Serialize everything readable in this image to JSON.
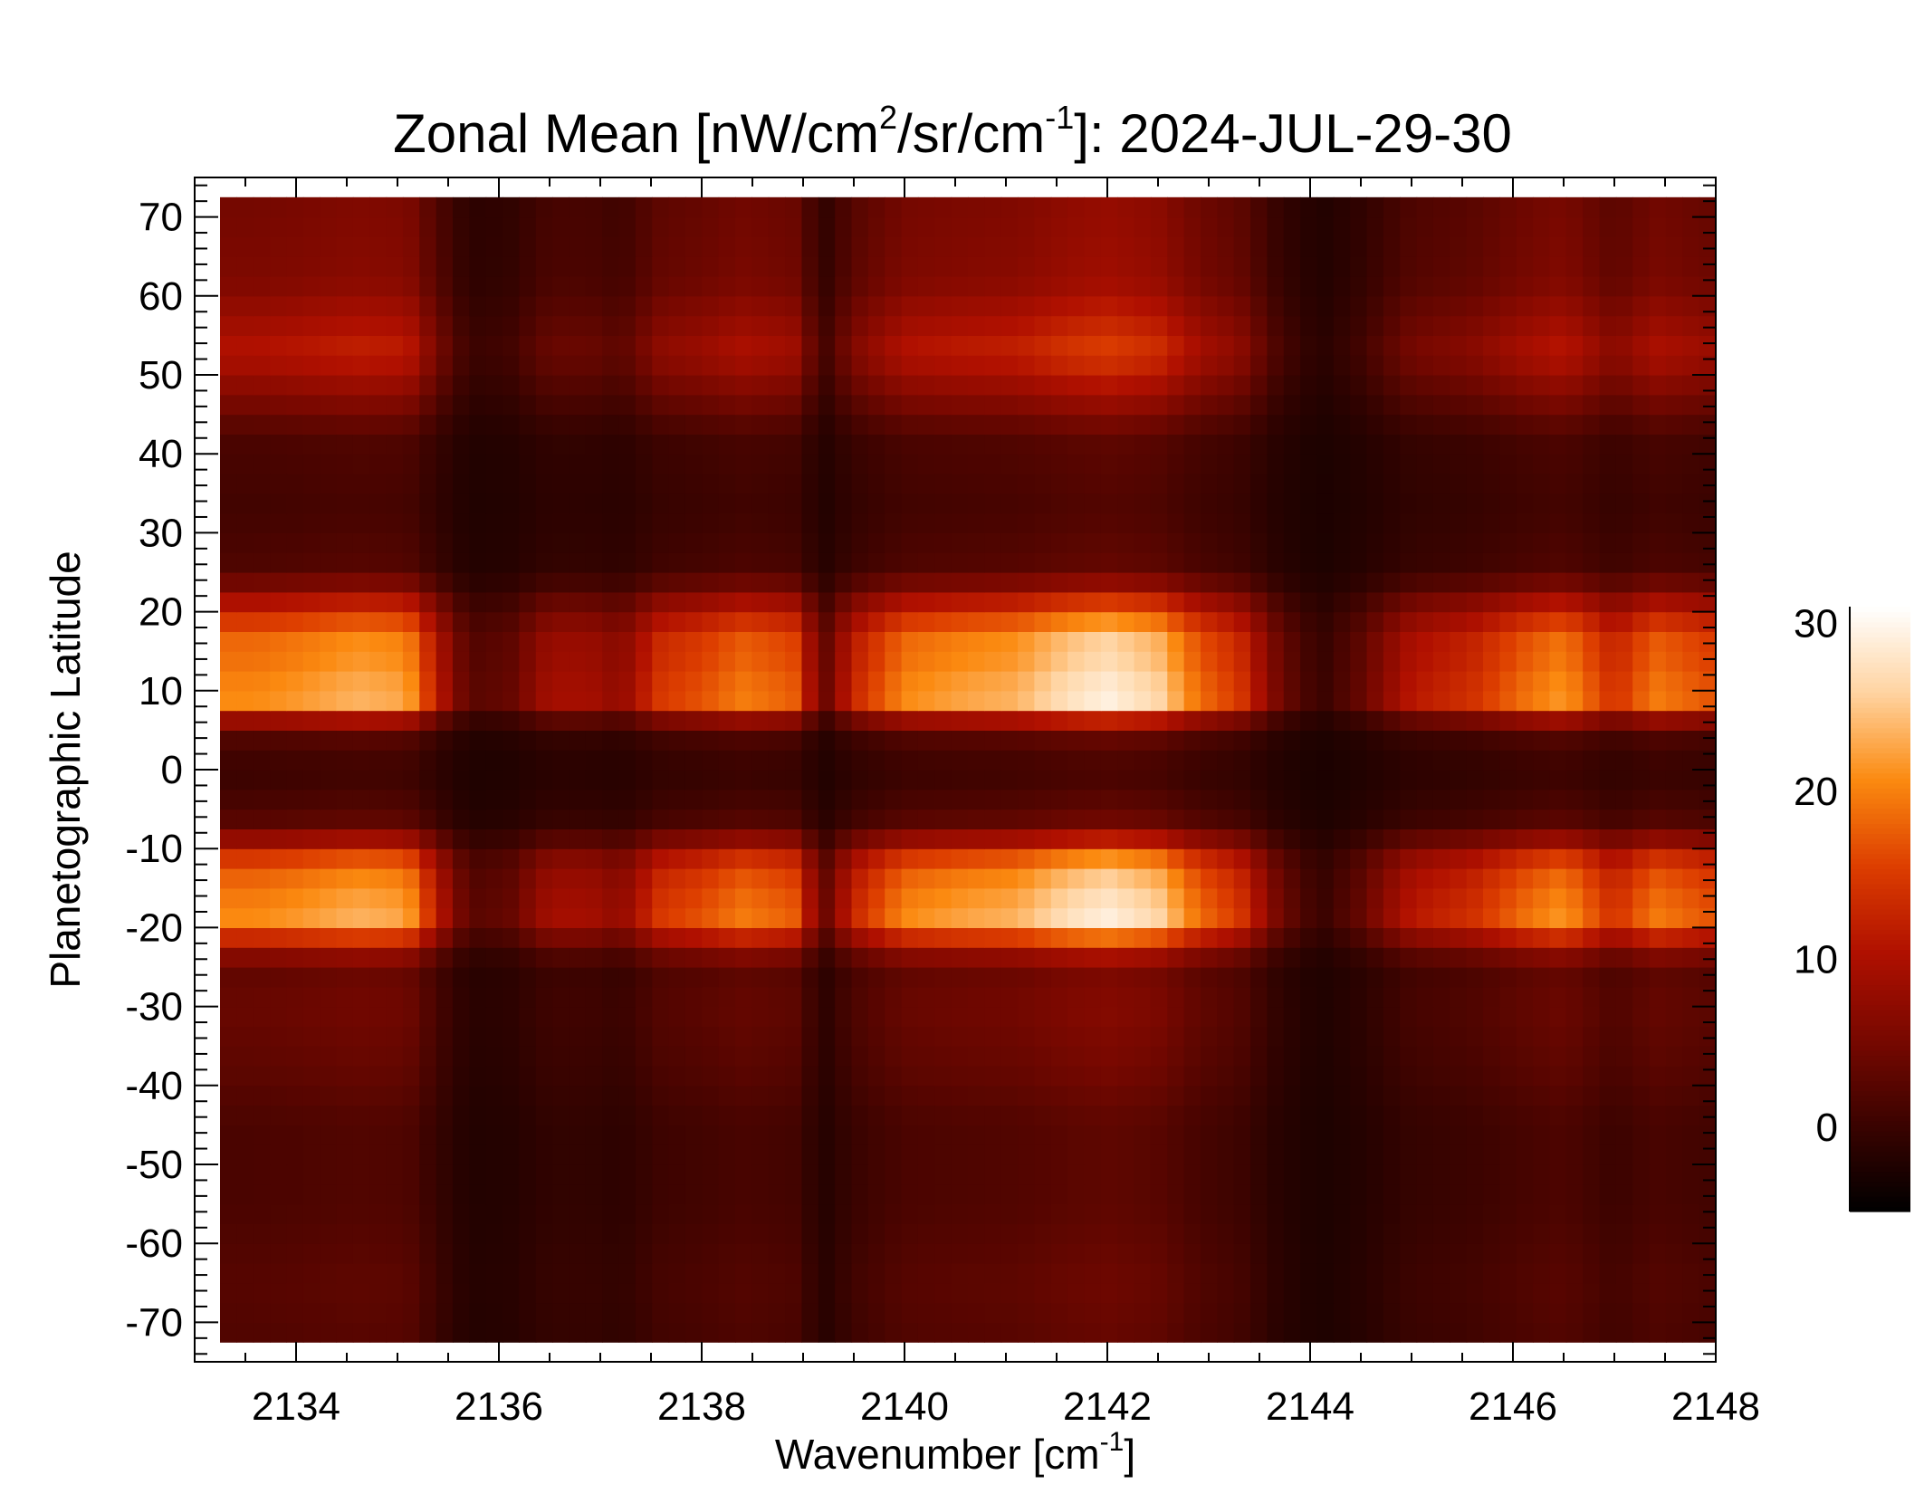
{
  "chart_data": {
    "type": "heatmap",
    "title": {
      "prefix": "Zonal Mean [nW/cm",
      "sup1": "2",
      "mid": "/sr/cm",
      "sup2": "-1",
      "suffix": "]: 2024-JUL-29-30"
    },
    "xlabel": {
      "prefix": "Wavenumber [cm",
      "sup": "-1",
      "suffix": "]"
    },
    "ylabel": "Planetographic Latitude",
    "xlim": [
      2133.0,
      2148.0
    ],
    "ylim": [
      -75,
      75
    ],
    "x_ticks": [
      "2134",
      "2136",
      "2138",
      "2140",
      "2142",
      "2144",
      "2146",
      "2148"
    ],
    "y_ticks": [
      "70",
      "60",
      "50",
      "40",
      "30",
      "20",
      "10",
      "0",
      "-10",
      "-20",
      "-30",
      "-40",
      "-50",
      "-60",
      "-70"
    ],
    "x_tick_values": [
      2134,
      2136,
      2138,
      2140,
      2142,
      2144,
      2146,
      2148
    ],
    "y_tick_values": [
      70,
      60,
      50,
      40,
      30,
      20,
      10,
      0,
      -10,
      -20,
      -30,
      -40,
      -50,
      -60,
      -70
    ],
    "data_extent": {
      "x": [
        2133.25,
        2148.0
      ],
      "y": [
        -72.5,
        72.5
      ]
    },
    "colorbar": {
      "range": [
        -5,
        31
      ],
      "ticks": [
        "30",
        "20",
        "10",
        "0"
      ],
      "tick_values": [
        30,
        20,
        10,
        0
      ],
      "colormap": [
        "#000000",
        "#3a0300",
        "#780800",
        "#b01000",
        "#dd3e00",
        "#fb8a10",
        "#ffd3a0",
        "#ffffff"
      ]
    },
    "latitude_profile": [
      {
        "lat": 72,
        "rel": 0.32
      },
      {
        "lat": 62,
        "rel": 0.35
      },
      {
        "lat": 53,
        "rel": 0.55
      },
      {
        "lat": 47,
        "rel": 0.35
      },
      {
        "lat": 42,
        "rel": 0.18
      },
      {
        "lat": 33,
        "rel": 0.15
      },
      {
        "lat": 25,
        "rel": 0.2
      },
      {
        "lat": 21,
        "rel": 0.55
      },
      {
        "lat": 17,
        "rel": 0.85
      },
      {
        "lat": 12,
        "rel": 0.9
      },
      {
        "lat": 9,
        "rel": 1.0
      },
      {
        "lat": 6,
        "rel": 0.4
      },
      {
        "lat": 4,
        "rel": 0.2
      },
      {
        "lat": 0,
        "rel": 0.12
      },
      {
        "lat": -6,
        "rel": 0.2
      },
      {
        "lat": -9,
        "rel": 0.45
      },
      {
        "lat": -12,
        "rel": 0.8
      },
      {
        "lat": -16,
        "rel": 0.9
      },
      {
        "lat": -19,
        "rel": 0.95
      },
      {
        "lat": -22,
        "rel": 0.55
      },
      {
        "lat": -25,
        "rel": 0.25
      },
      {
        "lat": -30,
        "rel": 0.28
      },
      {
        "lat": -38,
        "rel": 0.24
      },
      {
        "lat": -45,
        "rel": 0.18
      },
      {
        "lat": -55,
        "rel": 0.18
      },
      {
        "lat": -65,
        "rel": 0.22
      },
      {
        "lat": -72,
        "rel": 0.2
      }
    ],
    "wavenumber_profile": [
      {
        "x": 2133.25,
        "amp": 22
      },
      {
        "x": 2133.6,
        "amp": 22
      },
      {
        "x": 2134.0,
        "amp": 23
      },
      {
        "x": 2134.6,
        "amp": 25
      },
      {
        "x": 2135.1,
        "amp": 24
      },
      {
        "x": 2135.4,
        "amp": 12
      },
      {
        "x": 2135.7,
        "amp": 3
      },
      {
        "x": 2136.1,
        "amp": 4
      },
      {
        "x": 2136.5,
        "amp": 10
      },
      {
        "x": 2136.9,
        "amp": 10
      },
      {
        "x": 2137.2,
        "amp": 8
      },
      {
        "x": 2137.6,
        "amp": 16
      },
      {
        "x": 2138.0,
        "amp": 18
      },
      {
        "x": 2138.4,
        "amp": 21
      },
      {
        "x": 2138.9,
        "amp": 19
      },
      {
        "x": 2139.2,
        "amp": 4
      },
      {
        "x": 2139.5,
        "amp": 14
      },
      {
        "x": 2140.0,
        "amp": 22
      },
      {
        "x": 2140.6,
        "amp": 24
      },
      {
        "x": 2141.1,
        "amp": 25
      },
      {
        "x": 2141.6,
        "amp": 29
      },
      {
        "x": 2142.0,
        "amp": 31
      },
      {
        "x": 2142.5,
        "amp": 28
      },
      {
        "x": 2142.9,
        "amp": 20
      },
      {
        "x": 2143.3,
        "amp": 16
      },
      {
        "x": 2143.7,
        "amp": 5
      },
      {
        "x": 2144.1,
        "amp": 0
      },
      {
        "x": 2144.5,
        "amp": 4
      },
      {
        "x": 2145.0,
        "amp": 12
      },
      {
        "x": 2145.6,
        "amp": 15
      },
      {
        "x": 2146.1,
        "amp": 20
      },
      {
        "x": 2146.5,
        "amp": 23
      },
      {
        "x": 2147.0,
        "amp": 15
      },
      {
        "x": 2147.4,
        "amp": 21
      },
      {
        "x": 2147.8,
        "amp": 19
      },
      {
        "x": 2148.0,
        "amp": 18
      }
    ]
  }
}
